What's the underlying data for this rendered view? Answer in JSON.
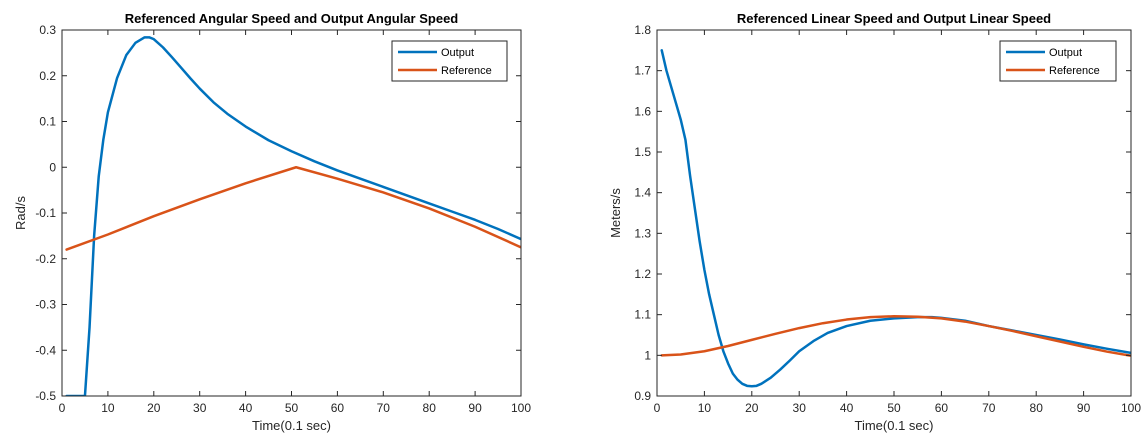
{
  "chart_data": [
    {
      "type": "line",
      "title": "Referenced Angular Speed and Output Angular Speed",
      "xlabel": "Time(0.1 sec)",
      "ylabel": "Rad/s",
      "xlim": [
        0,
        100
      ],
      "ylim": [
        -0.5,
        0.3
      ],
      "xticks": [
        0,
        10,
        20,
        30,
        40,
        50,
        60,
        70,
        80,
        90,
        100
      ],
      "yticks": [
        -0.5,
        -0.4,
        -0.3,
        -0.2,
        -0.1,
        0,
        0.1,
        0.2,
        0.3
      ],
      "grid": false,
      "legend": "top-right",
      "series": [
        {
          "name": "Output",
          "color": "#0072BD",
          "x": [
            1,
            2,
            3,
            4,
            5,
            6,
            7,
            8,
            9,
            10,
            12,
            14,
            16,
            18,
            19,
            20,
            22,
            24,
            26,
            28,
            30,
            33,
            36,
            40,
            45,
            50,
            55,
            60,
            65,
            70,
            75,
            80,
            85,
            90,
            95,
            100
          ],
          "y": [
            -0.5,
            -0.5,
            -0.5,
            -0.5,
            -0.5,
            -0.35,
            -0.15,
            -0.02,
            0.06,
            0.12,
            0.195,
            0.245,
            0.272,
            0.284,
            0.284,
            0.28,
            0.262,
            0.24,
            0.217,
            0.194,
            0.172,
            0.142,
            0.117,
            0.089,
            0.059,
            0.035,
            0.013,
            -0.007,
            -0.025,
            -0.043,
            -0.061,
            -0.079,
            -0.097,
            -0.115,
            -0.135,
            -0.157
          ]
        },
        {
          "name": "Reference",
          "color": "#D95319",
          "x": [
            1,
            10,
            20,
            30,
            40,
            51,
            60,
            70,
            80,
            90,
            100
          ],
          "y": [
            -0.18,
            -0.147,
            -0.107,
            -0.07,
            -0.035,
            0,
            -0.025,
            -0.055,
            -0.09,
            -0.13,
            -0.175
          ]
        }
      ]
    },
    {
      "type": "line",
      "title": "Referenced Linear Speed and Output Linear Speed",
      "xlabel": "Time(0.1 sec)",
      "ylabel": "Meters/s",
      "xlim": [
        0,
        100
      ],
      "ylim": [
        0.9,
        1.8
      ],
      "xticks": [
        0,
        10,
        20,
        30,
        40,
        50,
        60,
        70,
        80,
        90,
        100
      ],
      "yticks": [
        0.9,
        1,
        1.1,
        1.2,
        1.3,
        1.4,
        1.5,
        1.6,
        1.7,
        1.8
      ],
      "grid": false,
      "legend": "top-right",
      "series": [
        {
          "name": "Output",
          "color": "#0072BD",
          "x": [
            1,
            2,
            3,
            4,
            5,
            6,
            7,
            8,
            9,
            10,
            11,
            12,
            13,
            14,
            15,
            16,
            17,
            18,
            19,
            20,
            21,
            22,
            24,
            26,
            28,
            30,
            33,
            36,
            40,
            45,
            50,
            55,
            58,
            60,
            65,
            70,
            75,
            80,
            85,
            90,
            95,
            100
          ],
          "y": [
            1.75,
            1.7,
            1.66,
            1.62,
            1.58,
            1.53,
            1.44,
            1.36,
            1.28,
            1.21,
            1.15,
            1.1,
            1.05,
            1.01,
            0.98,
            0.955,
            0.94,
            0.93,
            0.925,
            0.924,
            0.925,
            0.93,
            0.945,
            0.965,
            0.987,
            1.01,
            1.035,
            1.055,
            1.072,
            1.085,
            1.091,
            1.094,
            1.094,
            1.092,
            1.085,
            1.072,
            1.061,
            1.05,
            1.039,
            1.027,
            1.016,
            1.006
          ]
        },
        {
          "name": "Reference",
          "color": "#D95319",
          "x": [
            1,
            5,
            10,
            15,
            20,
            25,
            30,
            35,
            40,
            45,
            50,
            55,
            60,
            65,
            70,
            75,
            80,
            85,
            90,
            95,
            100
          ],
          "y": [
            1.0,
            1.002,
            1.01,
            1.023,
            1.038,
            1.053,
            1.067,
            1.079,
            1.088,
            1.094,
            1.096,
            1.095,
            1.091,
            1.083,
            1.072,
            1.06,
            1.047,
            1.034,
            1.021,
            1.009,
            0.999
          ]
        }
      ]
    }
  ]
}
